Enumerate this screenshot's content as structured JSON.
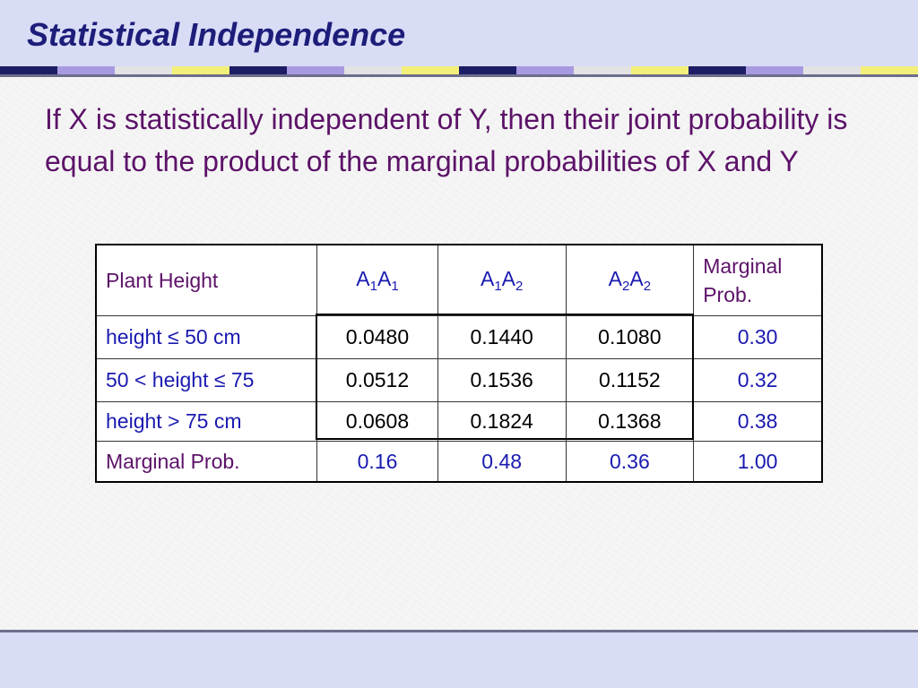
{
  "slide": {
    "title": "Statistical Independence",
    "body": "If X is statistically independent of Y, then their joint probability is equal to the product of the marginal probabilities of X and Y"
  },
  "table": {
    "header": {
      "row_label": "Plant Height",
      "columns": [
        {
          "base1": "A",
          "sub1": "1",
          "base2": "A",
          "sub2": "1"
        },
        {
          "base1": "A",
          "sub1": "1",
          "base2": "A",
          "sub2": "2"
        },
        {
          "base1": "A",
          "sub1": "2",
          "base2": "A",
          "sub2": "2"
        }
      ],
      "marginal_line1": "Marginal",
      "marginal_line2": "Prob."
    },
    "rows": [
      {
        "label": "height ≤ 50 cm",
        "values": [
          "0.0480",
          "0.1440",
          "0.1080"
        ],
        "marginal": "0.30"
      },
      {
        "label": "50 < height ≤ 75",
        "values": [
          "0.0512",
          "0.1536",
          "0.1152"
        ],
        "marginal": "0.32"
      },
      {
        "label": "height > 75 cm",
        "values": [
          "0.0608",
          "0.1824",
          "0.1368"
        ],
        "marginal": "0.38"
      }
    ],
    "footer": {
      "label": "Marginal Prob.",
      "values": [
        "0.16",
        "0.48",
        "0.36"
      ],
      "total": "1.00"
    }
  },
  "colors": {
    "title": "#1d1d7a",
    "body_text": "#5c1268",
    "table_text": "#1a1ab0",
    "header_band": "#d9dcf5"
  }
}
